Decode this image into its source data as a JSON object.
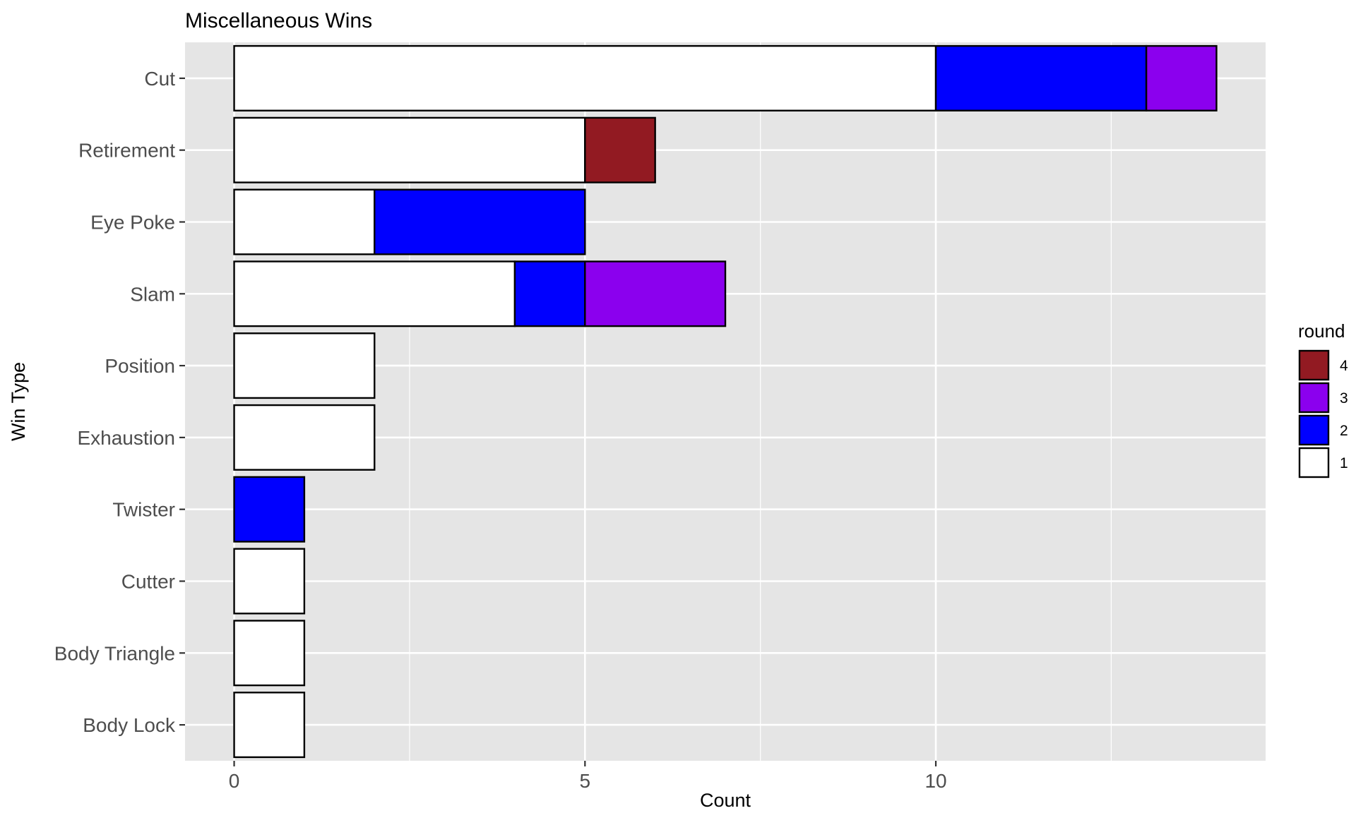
{
  "chart_data": {
    "type": "bar",
    "orientation": "horizontal",
    "stacked": true,
    "title": "Miscellaneous Wins",
    "xlabel": "Count",
    "ylabel": "Win Type",
    "xlim": [
      -0.7,
      14.7
    ],
    "x_ticks": [
      0,
      5,
      10
    ],
    "x_tick_labels": [
      "0",
      "5",
      "10"
    ],
    "grid": true,
    "categories": [
      "Cut",
      "Retirement",
      "Eye Poke",
      "Slam",
      "Position",
      "Exhaustion",
      "Twister",
      "Cutter",
      "Body Triangle",
      "Body Lock"
    ],
    "series": [
      {
        "name": "1",
        "color": "#ffffff",
        "values": [
          10,
          5,
          2,
          4,
          2,
          2,
          0,
          1,
          1,
          1
        ]
      },
      {
        "name": "2",
        "color": "#0000ff",
        "values": [
          3,
          0,
          3,
          1,
          0,
          0,
          1,
          0,
          0,
          0
        ]
      },
      {
        "name": "3",
        "color": "#8b00ee",
        "values": [
          1,
          0,
          0,
          2,
          0,
          0,
          0,
          0,
          0,
          0
        ]
      },
      {
        "name": "4",
        "color": "#921a22",
        "values": [
          0,
          1,
          0,
          0,
          0,
          0,
          0,
          0,
          0,
          0
        ]
      }
    ],
    "legend": {
      "title": "round",
      "position": "right",
      "order": [
        "4",
        "3",
        "2",
        "1"
      ]
    },
    "panel_background": "#e5e5e5",
    "grid_color": "#ffffff",
    "bar_outline": "#000000"
  }
}
